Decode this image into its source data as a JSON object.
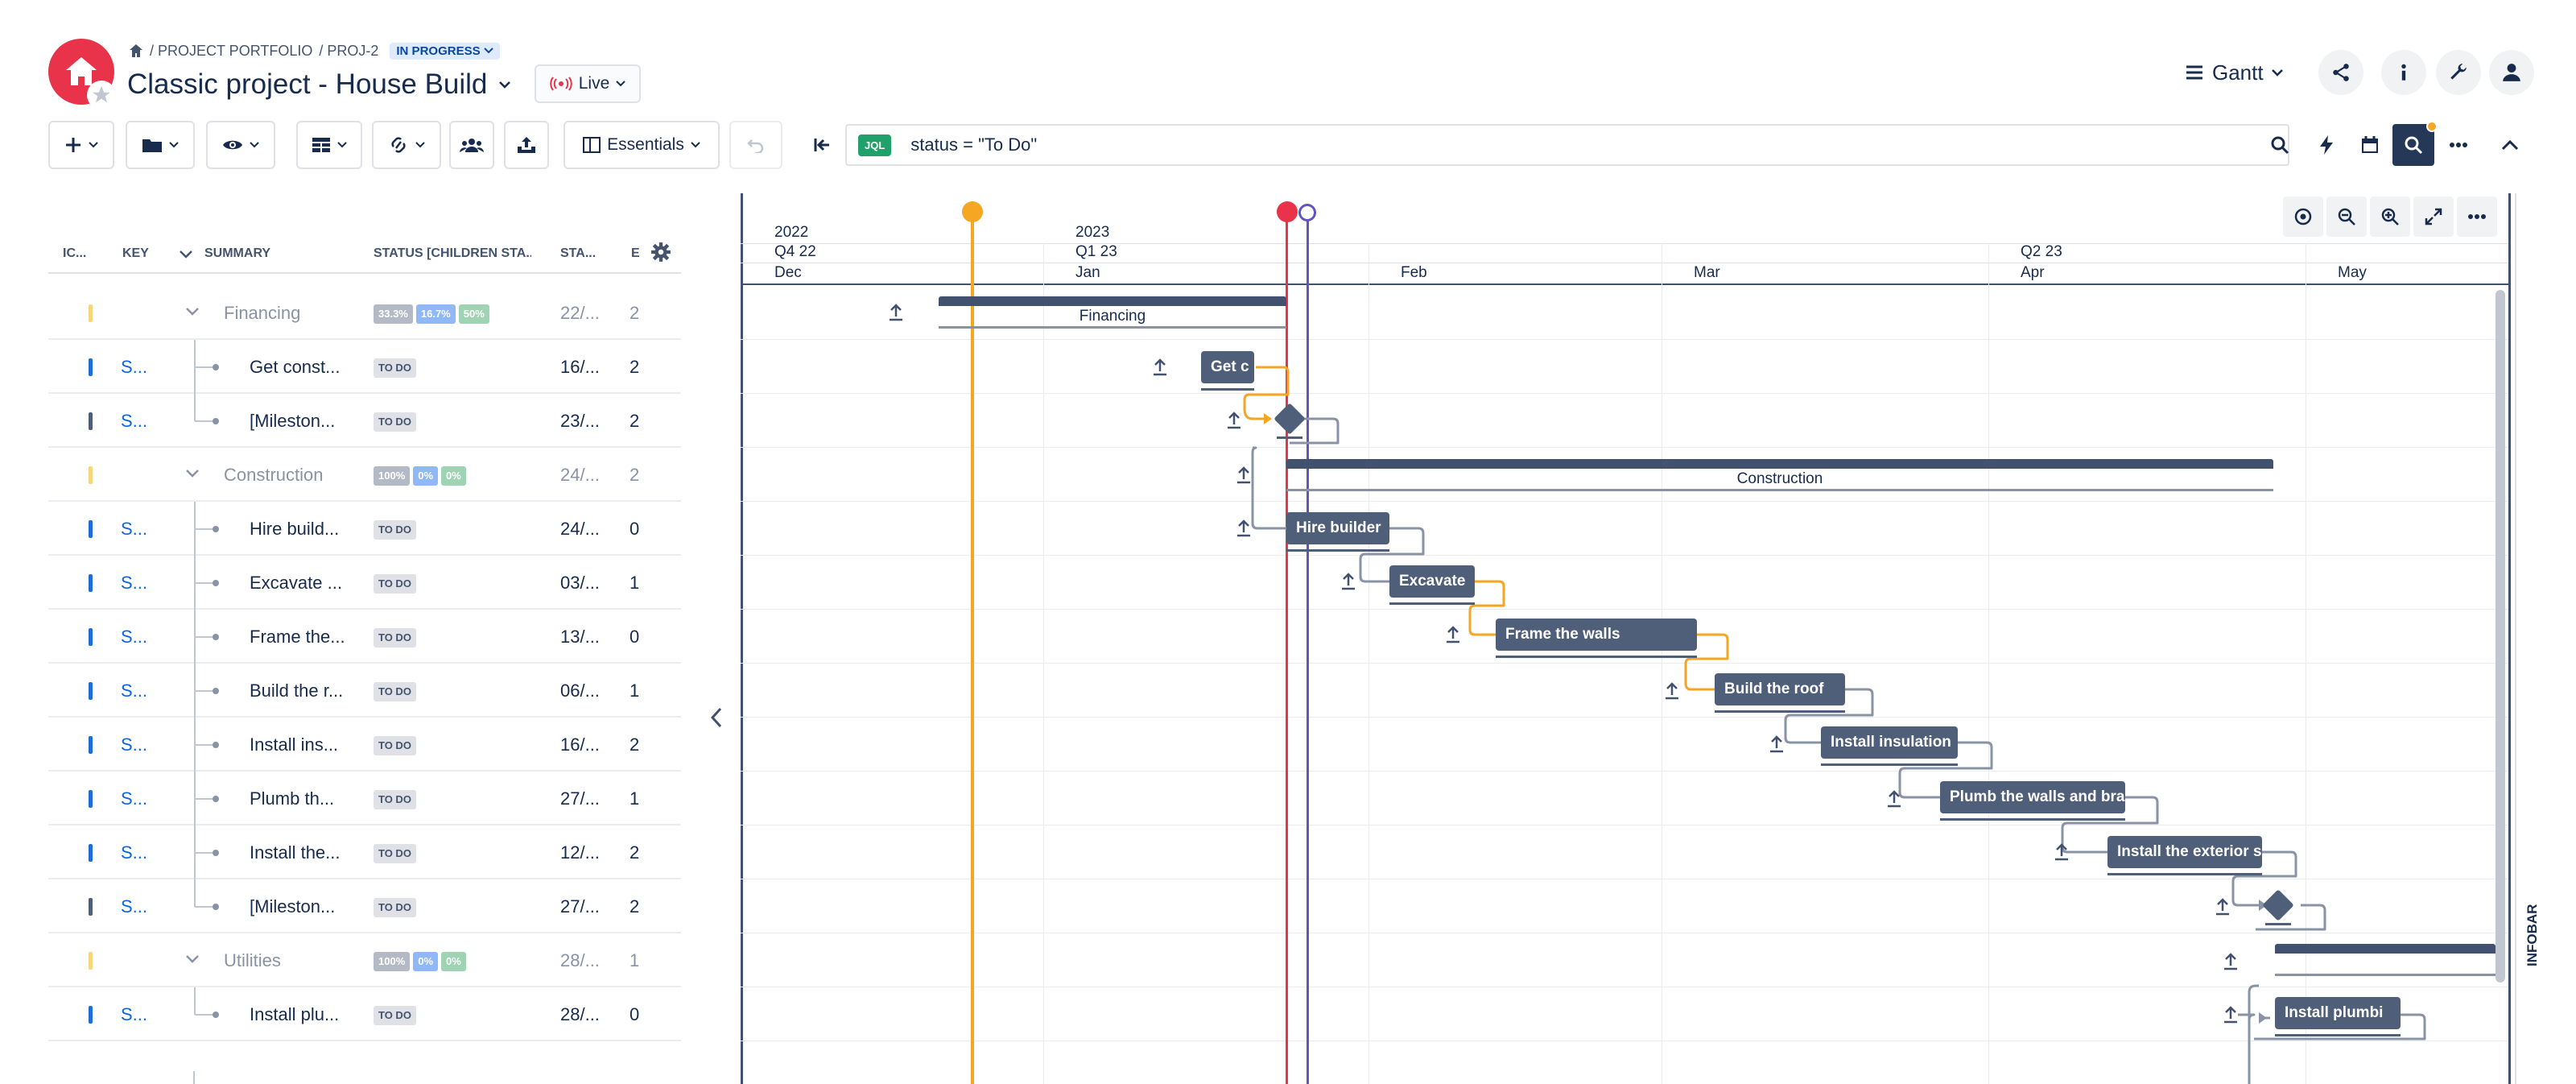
{
  "header": {
    "breadcrumb": {
      "portfolio": "/ PROJECT PORTFOLIO",
      "project": "/ PROJ-2",
      "status": "IN PROGRESS"
    },
    "title": "Classic project - House Build",
    "live_label": "Live",
    "view_label": "Gantt"
  },
  "toolbar": {
    "essentials_label": "Essentials",
    "jql_tag": "JQL",
    "jql_query": "status = \"To Do\""
  },
  "columns": {
    "icon": "IC...",
    "key": "KEY",
    "summary": "SUMMARY",
    "status": "STATUS [CHILDREN STA...",
    "start": "STA...",
    "e": "E"
  },
  "rows": [
    {
      "type": "group",
      "summary": "Financing",
      "pcts": [
        "33.3%",
        "16.7%",
        "50%"
      ],
      "start": "22/...",
      "e": "2"
    },
    {
      "type": "task",
      "key": "S...",
      "summary": "Get const...",
      "status": "TO DO",
      "start": "16/...",
      "e": "2"
    },
    {
      "type": "milestone",
      "key": "S...",
      "summary": "[Mileston...",
      "status": "TO DO",
      "start": "23/...",
      "e": "2"
    },
    {
      "type": "group",
      "summary": "Construction",
      "pcts": [
        "100%",
        "0%",
        "0%"
      ],
      "start": "24/...",
      "e": "2"
    },
    {
      "type": "task",
      "key": "S...",
      "summary": "Hire build...",
      "status": "TO DO",
      "start": "24/...",
      "e": "0"
    },
    {
      "type": "task",
      "key": "S...",
      "summary": "Excavate ...",
      "status": "TO DO",
      "start": "03/...",
      "e": "1"
    },
    {
      "type": "task",
      "key": "S...",
      "summary": "Frame the...",
      "status": "TO DO",
      "start": "13/...",
      "e": "0"
    },
    {
      "type": "task",
      "key": "S...",
      "summary": "Build the r...",
      "status": "TO DO",
      "start": "06/...",
      "e": "1"
    },
    {
      "type": "task",
      "key": "S...",
      "summary": "Install ins...",
      "status": "TO DO",
      "start": "16/...",
      "e": "2"
    },
    {
      "type": "task",
      "key": "S...",
      "summary": "Plumb th...",
      "status": "TO DO",
      "start": "27/...",
      "e": "1"
    },
    {
      "type": "task",
      "key": "S...",
      "summary": "Install the...",
      "status": "TO DO",
      "start": "12/...",
      "e": "2"
    },
    {
      "type": "milestone",
      "key": "S...",
      "summary": "[Mileston...",
      "status": "TO DO",
      "start": "27/...",
      "e": "2"
    },
    {
      "type": "group",
      "summary": "Utilities",
      "pcts": [
        "100%",
        "0%",
        "0%"
      ],
      "start": "28/...",
      "e": "1"
    },
    {
      "type": "task",
      "key": "S...",
      "summary": "Install plu...",
      "status": "TO DO",
      "start": "28/...",
      "e": "0"
    }
  ],
  "timeline": {
    "years": [
      "2022",
      "2023"
    ],
    "quarters": [
      "Q4 22",
      "Q1 23",
      "Q2 23"
    ],
    "months": [
      "Dec",
      "Jan",
      "Feb",
      "Mar",
      "Apr",
      "May"
    ]
  },
  "bars": {
    "financing": "Financing",
    "get": "Get c",
    "construction": "Construction",
    "hire": "Hire builder",
    "excavate": "Excavate",
    "frame": "Frame the walls",
    "roof": "Build the roof",
    "insulation": "Install insulation",
    "plumb": "Plumb the walls and bra",
    "exterior": "Install the exterior s",
    "plumbing": "Install plumbi"
  },
  "infobar_label": "INFOBAR",
  "colors": {
    "accent": "#e8334a",
    "bar": "#505f79",
    "orange": "#f5a623",
    "today": "#e8334a",
    "marker": "#6554c0"
  }
}
